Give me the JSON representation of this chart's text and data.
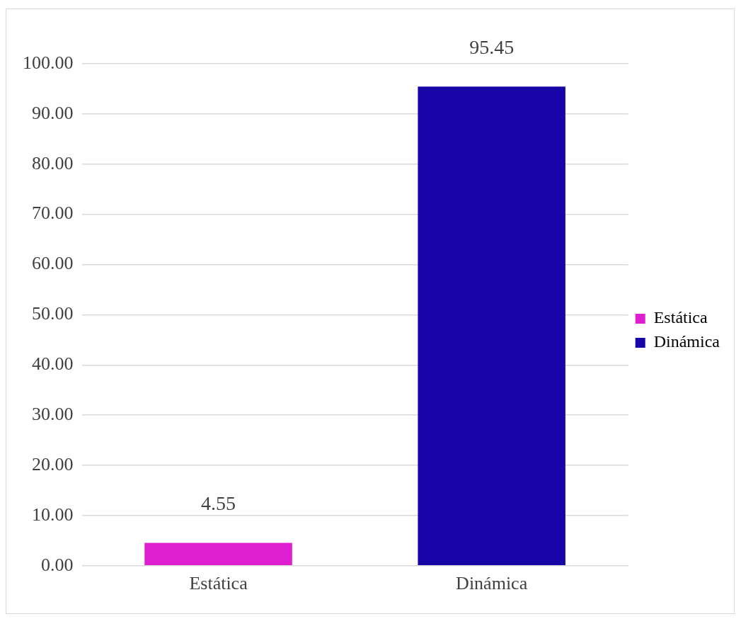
{
  "chart_data": {
    "type": "bar",
    "categories": [
      "Estática",
      "Dinámica"
    ],
    "series": [
      {
        "name": "Estática",
        "color": "#de1fcf",
        "values": [
          4.55,
          null
        ]
      },
      {
        "name": "Dinámica",
        "color": "#1705a8",
        "values": [
          null,
          95.45
        ]
      }
    ],
    "ylim": [
      0,
      100
    ],
    "yticks": [
      {
        "value": 0,
        "label": "0.00"
      },
      {
        "value": 10,
        "label": "10.00"
      },
      {
        "value": 20,
        "label": "20.00"
      },
      {
        "value": 30,
        "label": "30.00"
      },
      {
        "value": 40,
        "label": "40.00"
      },
      {
        "value": 50,
        "label": "50.00"
      },
      {
        "value": 60,
        "label": "60.00"
      },
      {
        "value": 70,
        "label": "70.00"
      },
      {
        "value": 80,
        "label": "80.00"
      },
      {
        "value": 90,
        "label": "90.00"
      },
      {
        "value": 100,
        "label": "100.00"
      }
    ],
    "grid": "y",
    "legend": "right",
    "data_labels": true
  }
}
